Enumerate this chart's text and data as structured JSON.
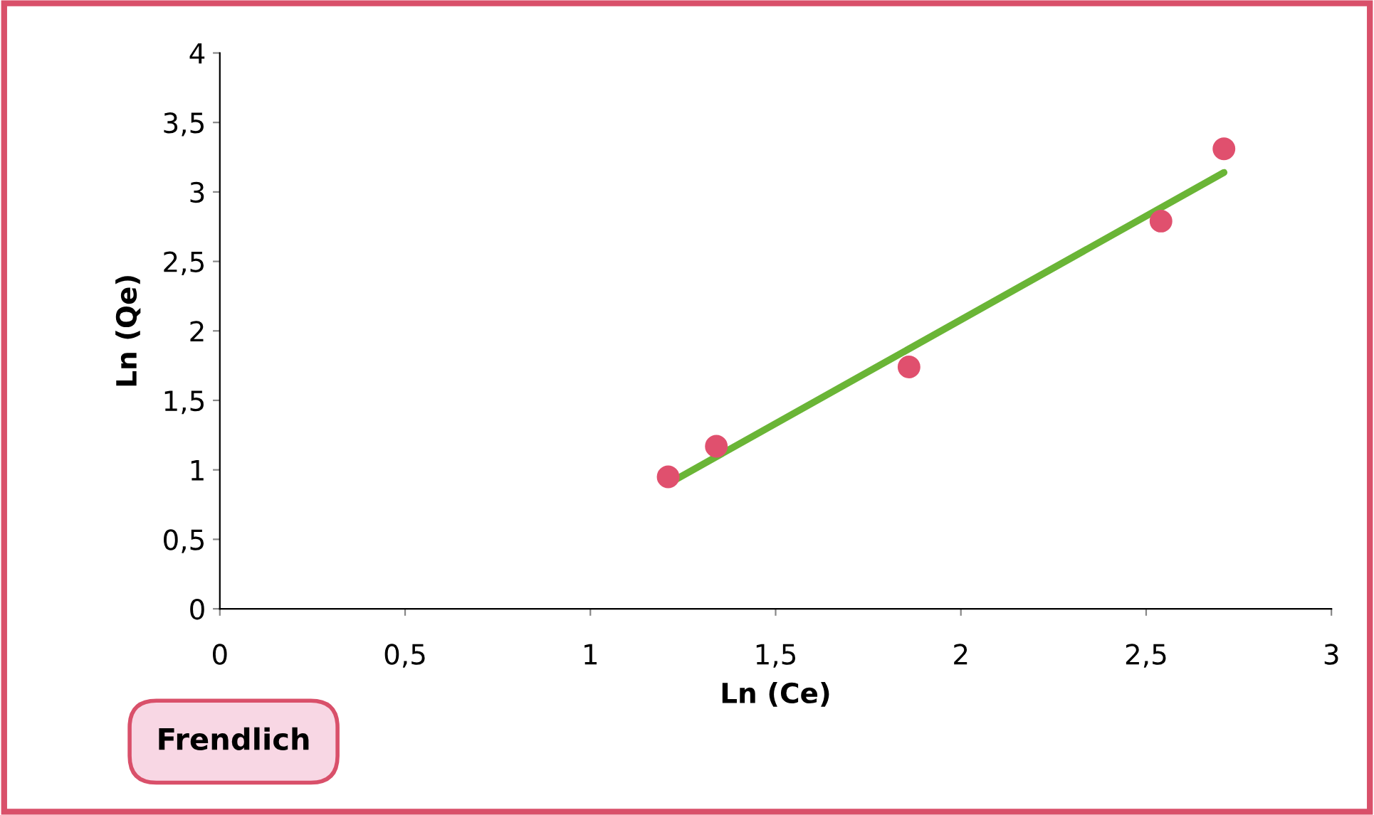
{
  "chart_data": {
    "type": "scatter",
    "xlabel": "Ln (Ce)",
    "ylabel": "Ln (Qe)",
    "annotations": [
      "Frendlich"
    ],
    "series": [
      {
        "color": "#e0506e",
        "x": [
          1.21,
          1.34,
          1.86,
          2.54,
          2.71
        ],
        "values": [
          0.95,
          1.17,
          1.74,
          2.79,
          3.31
        ],
        "marker": "circle"
      },
      {
        "type": "line",
        "color": "#6ab536",
        "x": [
          1.21,
          2.71
        ],
        "values": [
          0.9,
          3.14
        ],
        "marker": "none"
      }
    ],
    "xlim": [
      0,
      3
    ],
    "ylim": [
      0,
      4
    ],
    "xticks": [
      0,
      {
        "value": 0.5,
        "label": "0,5"
      },
      1,
      {
        "value": 1.5,
        "label": "1,5"
      },
      2,
      {
        "value": 2.5,
        "label": "2,5"
      },
      3
    ],
    "yticks": [
      0,
      {
        "value": 0.5,
        "label": "0,5"
      },
      1,
      {
        "value": 1.5,
        "label": "1,5"
      },
      2,
      {
        "value": 2.5,
        "label": "2,5"
      },
      3,
      {
        "value": 3.5,
        "label": "3,5"
      },
      4
    ],
    "grid": false,
    "legend": false
  }
}
